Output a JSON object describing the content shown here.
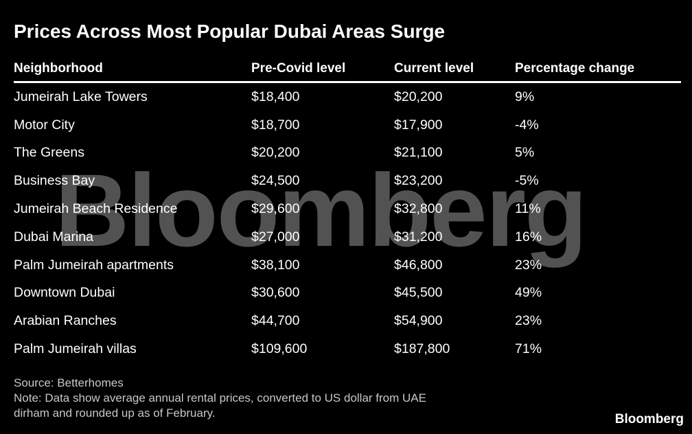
{
  "title": "Prices Across Most Popular Dubai Areas Surge",
  "watermark": "Bloomberg",
  "brand": "Bloomberg",
  "source": "Source: Betterhomes",
  "note_line1": "Note: Data show average annual rental prices, converted to US dollar from UAE",
  "note_line2": "dirham and rounded up as of February.",
  "chart_data": {
    "type": "table",
    "title": "Prices Across Most Popular Dubai Areas Surge",
    "columns": [
      "Neighborhood",
      "Pre-Covid level",
      "Current level",
      "Percentage change"
    ],
    "rows": [
      [
        "Jumeirah Lake Towers",
        "$18,400",
        "$20,200",
        "9%"
      ],
      [
        "Motor City",
        "$18,700",
        "$17,900",
        "-4%"
      ],
      [
        "The Greens",
        "$20,200",
        "$21,100",
        "5%"
      ],
      [
        "Business Bay",
        "$24,500",
        "$23,200",
        "-5%"
      ],
      [
        "Jumeirah Beach Residence",
        "$29,600",
        "$32,800",
        "11%"
      ],
      [
        "Dubai Marina",
        "$27,000",
        "$31,200",
        "16%"
      ],
      [
        "Palm Jumeirah apartments",
        "$38,100",
        "$46,800",
        "23%"
      ],
      [
        "Downtown Dubai",
        "$30,600",
        "$45,500",
        "49%"
      ],
      [
        "Arabian Ranches",
        "$44,700",
        "$54,900",
        "23%"
      ],
      [
        "Palm Jumeirah villas",
        "$109,600",
        "$187,800",
        "71%"
      ]
    ]
  }
}
